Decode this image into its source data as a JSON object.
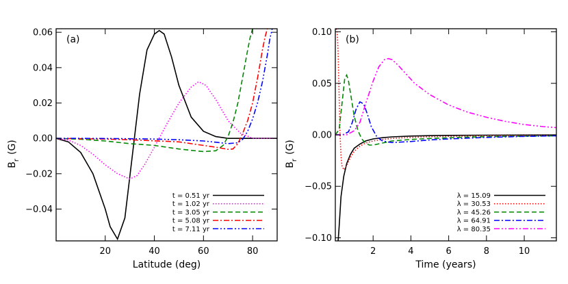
{
  "chart_data": [
    {
      "panel_label": "(a)",
      "type": "line",
      "xlabel": "Latitude (deg)",
      "ylabel": "B",
      "ylabel_sub": "r",
      "ylabel_unit": "(G)",
      "xlim": [
        0,
        90
      ],
      "ylim": [
        -0.058,
        0.062
      ],
      "x_ticks": [
        20,
        40,
        60,
        80
      ],
      "x_tick_labels": [
        "20",
        "40",
        "60",
        "80"
      ],
      "y_ticks": [
        -0.04,
        -0.02,
        0.0,
        0.02,
        0.04,
        0.06
      ],
      "y_tick_labels": [
        "−0.04",
        "−0.02",
        "0.00",
        "0.02",
        "0.04",
        "0.06"
      ],
      "legend_position": "bottom-right",
      "series": [
        {
          "name": "t = 0.51 yr",
          "color": "#000000",
          "dash": "solid",
          "x": [
            0,
            5,
            10,
            15,
            20,
            22,
            25,
            28,
            31,
            34,
            37,
            40,
            42,
            44,
            47,
            50,
            55,
            60,
            65,
            70,
            80,
            90
          ],
          "y": [
            0,
            -0.002,
            -0.008,
            -0.02,
            -0.04,
            -0.05,
            -0.057,
            -0.045,
            -0.01,
            0.025,
            0.05,
            0.059,
            0.061,
            0.059,
            0.046,
            0.03,
            0.012,
            0.004,
            0.001,
            0,
            0,
            0
          ]
        },
        {
          "name": "t = 1.02 yr",
          "color": "#ff00ff",
          "dash": "dotted",
          "x": [
            0,
            5,
            10,
            15,
            20,
            25,
            30,
            33,
            36,
            40,
            45,
            50,
            55,
            58,
            61,
            65,
            70,
            75,
            80,
            85,
            90
          ],
          "y": [
            0,
            -0.001,
            -0.004,
            -0.009,
            -0.015,
            -0.02,
            -0.023,
            -0.021,
            -0.015,
            -0.005,
            0.008,
            0.02,
            0.029,
            0.032,
            0.03,
            0.022,
            0.01,
            0.003,
            0,
            0,
            0
          ]
        },
        {
          "name": "t = 3.05 yr",
          "color": "#008800",
          "dash": "dashed",
          "x": [
            0,
            10,
            20,
            30,
            40,
            50,
            55,
            60,
            65,
            68,
            70,
            72,
            74,
            76,
            78,
            79,
            80
          ],
          "y": [
            0,
            -0.0005,
            -0.0015,
            -0.003,
            -0.004,
            -0.006,
            -0.0068,
            -0.0075,
            -0.007,
            -0.004,
            0.001,
            0.009,
            0.02,
            0.035,
            0.05,
            0.057,
            0.062
          ]
        },
        {
          "name": "t = 5.08 yr",
          "color": "#ff0000",
          "dash": "dashdot",
          "x": [
            0,
            10,
            20,
            30,
            40,
            50,
            60,
            65,
            70,
            72,
            74,
            76,
            78,
            80,
            82,
            84,
            85,
            86
          ],
          "y": [
            0,
            -0.0002,
            -0.0004,
            -0.0008,
            -0.0014,
            -0.002,
            -0.004,
            -0.005,
            -0.0062,
            -0.006,
            -0.003,
            0.003,
            0.01,
            0.02,
            0.034,
            0.05,
            0.057,
            0.062
          ]
        },
        {
          "name": "t = 7.11 yr",
          "color": "#0000ff",
          "dash": "dashdotdot",
          "x": [
            0,
            10,
            20,
            30,
            40,
            50,
            60,
            65,
            70,
            74,
            76,
            78,
            80,
            82,
            84,
            86,
            87,
            88
          ],
          "y": [
            0,
            0,
            -0.0001,
            -0.0002,
            -0.0004,
            -0.0008,
            -0.0015,
            -0.0022,
            -0.003,
            -0.0025,
            -0.0005,
            0.004,
            0.011,
            0.02,
            0.032,
            0.047,
            0.056,
            0.062
          ]
        }
      ]
    },
    {
      "panel_label": "(b)",
      "type": "line",
      "xlabel": "Time (years)",
      "ylabel": "B",
      "ylabel_sub": "r",
      "ylabel_unit": "(G)",
      "xlim": [
        0,
        11.7
      ],
      "ylim": [
        -0.103,
        0.103
      ],
      "x_ticks": [
        2,
        4,
        6,
        8,
        10
      ],
      "x_tick_labels": [
        "2",
        "4",
        "6",
        "8",
        "10"
      ],
      "y_ticks": [
        -0.1,
        -0.05,
        0.0,
        0.05,
        0.1
      ],
      "y_tick_labels": [
        "−0.10",
        "−0.05",
        "0.00",
        "0.05",
        "0.10"
      ],
      "legend_position": "bottom-right",
      "series": [
        {
          "name": "λ = 15.09",
          "color": "#000000",
          "dash": "solid",
          "x": [
            0.15,
            0.2,
            0.3,
            0.45,
            0.6,
            0.8,
            1.0,
            1.3,
            1.6,
            2.0,
            2.5,
            3,
            4,
            5,
            6,
            8,
            10,
            11.7
          ],
          "y": [
            -0.103,
            -0.09,
            -0.06,
            -0.04,
            -0.028,
            -0.019,
            -0.013,
            -0.009,
            -0.006,
            -0.004,
            -0.0028,
            -0.002,
            -0.0012,
            -0.0008,
            -0.0005,
            -0.0003,
            -0.0002,
            -0.0001
          ]
        },
        {
          "name": "λ = 30.53",
          "color": "#ff0000",
          "dash": "dotted",
          "x": [
            0.05,
            0.1,
            0.15,
            0.2,
            0.25,
            0.3,
            0.35,
            0.45,
            0.6,
            0.8,
            1.0,
            1.3,
            1.6,
            2.0,
            2.5,
            3,
            4,
            5,
            7,
            9,
            11.7
          ],
          "y": [
            0.103,
            0.1,
            0.08,
            0.04,
            0.0,
            -0.02,
            -0.03,
            -0.034,
            -0.03,
            -0.022,
            -0.016,
            -0.011,
            -0.008,
            -0.006,
            -0.0045,
            -0.0035,
            -0.0025,
            -0.0018,
            -0.0012,
            -0.0008,
            -0.0005
          ]
        },
        {
          "name": "λ = 45.26",
          "color": "#008800",
          "dash": "dashed",
          "x": [
            0,
            0.2,
            0.35,
            0.5,
            0.6,
            0.7,
            0.85,
            1.0,
            1.2,
            1.4,
            1.6,
            1.8,
            2.0,
            2.5,
            3,
            4,
            5,
            7,
            9,
            11.7
          ],
          "y": [
            0,
            0.005,
            0.03,
            0.055,
            0.058,
            0.052,
            0.035,
            0.018,
            0.004,
            -0.004,
            -0.008,
            -0.01,
            -0.01,
            -0.008,
            -0.006,
            -0.0045,
            -0.0035,
            -0.0022,
            -0.0015,
            -0.001
          ]
        },
        {
          "name": "λ = 64.91",
          "color": "#0000ff",
          "dash": "dashdot",
          "x": [
            0,
            0.4,
            0.7,
            0.9,
            1.1,
            1.3,
            1.5,
            1.7,
            1.9,
            2.2,
            2.5,
            2.8,
            3,
            4,
            5,
            6,
            8,
            10,
            11.7
          ],
          "y": [
            0,
            0,
            0.003,
            0.012,
            0.025,
            0.032,
            0.03,
            0.02,
            0.008,
            -0.002,
            -0.006,
            -0.007,
            -0.0075,
            -0.0065,
            -0.005,
            -0.004,
            -0.0025,
            -0.0015,
            -0.001
          ]
        },
        {
          "name": "λ = 80.35",
          "color": "#ff00ff",
          "dash": "dashdotdot",
          "x": [
            0,
            0.6,
            1.0,
            1.3,
            1.6,
            2.0,
            2.3,
            2.6,
            2.8,
            3.0,
            3.3,
            3.7,
            4.2,
            5,
            6,
            7,
            8,
            9,
            10,
            11,
            11.7
          ],
          "y": [
            0,
            0,
            0.004,
            0.012,
            0.03,
            0.052,
            0.066,
            0.073,
            0.074,
            0.073,
            0.068,
            0.06,
            0.05,
            0.039,
            0.029,
            0.022,
            0.017,
            0.013,
            0.01,
            0.008,
            0.007
          ]
        }
      ]
    }
  ]
}
